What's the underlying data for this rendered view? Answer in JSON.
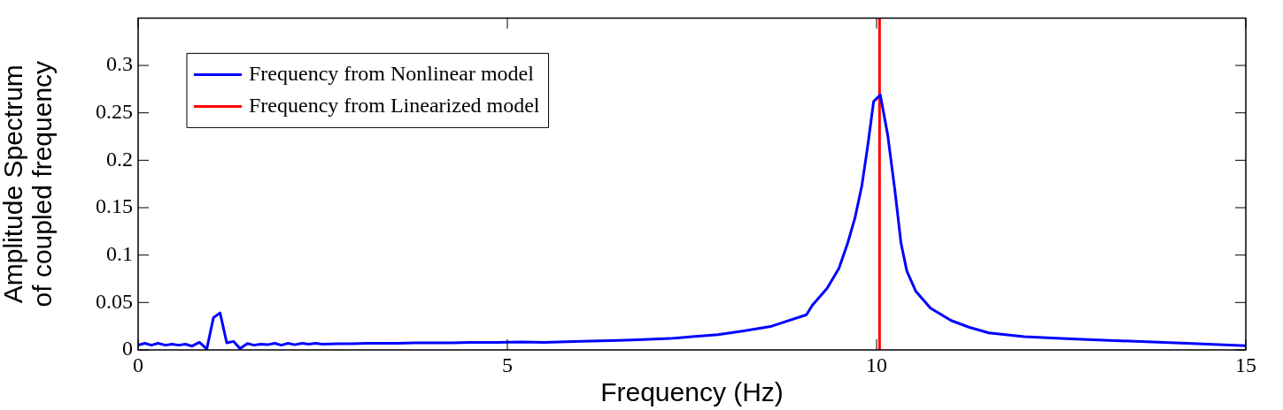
{
  "chart_data": {
    "type": "line",
    "xlabel": "Frequency (Hz)",
    "ylabel": "Amplitude Spectrum\nof coupled frequency",
    "xlim": [
      0,
      15
    ],
    "xticks": [
      0,
      5,
      10,
      15
    ],
    "ylim": [
      0,
      0.35
    ],
    "yticks": [
      0,
      0.05,
      0.1,
      0.15,
      0.2,
      0.25,
      0.3
    ],
    "grid": false,
    "legend": "top left",
    "marker": "none",
    "line_style": "solid",
    "series": [
      {
        "name": "Frequency from Nonlinear model",
        "color": "#0000ff",
        "x": [
          0,
          0.09,
          0.18,
          0.27,
          0.37,
          0.46,
          0.55,
          0.64,
          0.73,
          0.83,
          0.93,
          1.02,
          1.11,
          1.2,
          1.29,
          1.38,
          1.48,
          1.57,
          1.66,
          1.75,
          1.85,
          1.94,
          2.03,
          2.12,
          2.22,
          2.31,
          2.4,
          2.5,
          2.7,
          2.9,
          3.1,
          3.3,
          3.5,
          3.75,
          4.0,
          4.25,
          4.5,
          4.85,
          5.2,
          5.5,
          6.0,
          6.5,
          6.85,
          7.2,
          7.5,
          7.85,
          8.2,
          8.58,
          8.77,
          9.05,
          9.13,
          9.33,
          9.49,
          9.61,
          9.71,
          9.8,
          9.88,
          9.96,
          10.05,
          10.15,
          10.25,
          10.33,
          10.41,
          10.53,
          10.73,
          11.01,
          11.25,
          11.52,
          12.0,
          12.5,
          12.85,
          13.5,
          14.2,
          15.0
        ],
        "values": [
          0.005,
          0.007,
          0.005,
          0.007,
          0.005,
          0.006,
          0.005,
          0.006,
          0.004,
          0.008,
          0.001,
          0.034,
          0.039,
          0.0075,
          0.009,
          0.0015,
          0.0068,
          0.005,
          0.006,
          0.0055,
          0.007,
          0.005,
          0.007,
          0.0055,
          0.007,
          0.006,
          0.007,
          0.006,
          0.0065,
          0.0065,
          0.007,
          0.007,
          0.007,
          0.0075,
          0.0075,
          0.0075,
          0.008,
          0.008,
          0.0085,
          0.008,
          0.009,
          0.01,
          0.011,
          0.012,
          0.014,
          0.016,
          0.02,
          0.025,
          0.03,
          0.037,
          0.047,
          0.065,
          0.086,
          0.113,
          0.14,
          0.173,
          0.215,
          0.262,
          0.269,
          0.227,
          0.167,
          0.113,
          0.083,
          0.062,
          0.044,
          0.031,
          0.024,
          0.018,
          0.014,
          0.012,
          0.011,
          0.009,
          0.007,
          0.0045
        ]
      },
      {
        "name": "Frequency from Linearized model",
        "color": "#ff0000",
        "x": [
          10.04,
          10.04
        ],
        "values": [
          0,
          0.35
        ]
      }
    ]
  }
}
